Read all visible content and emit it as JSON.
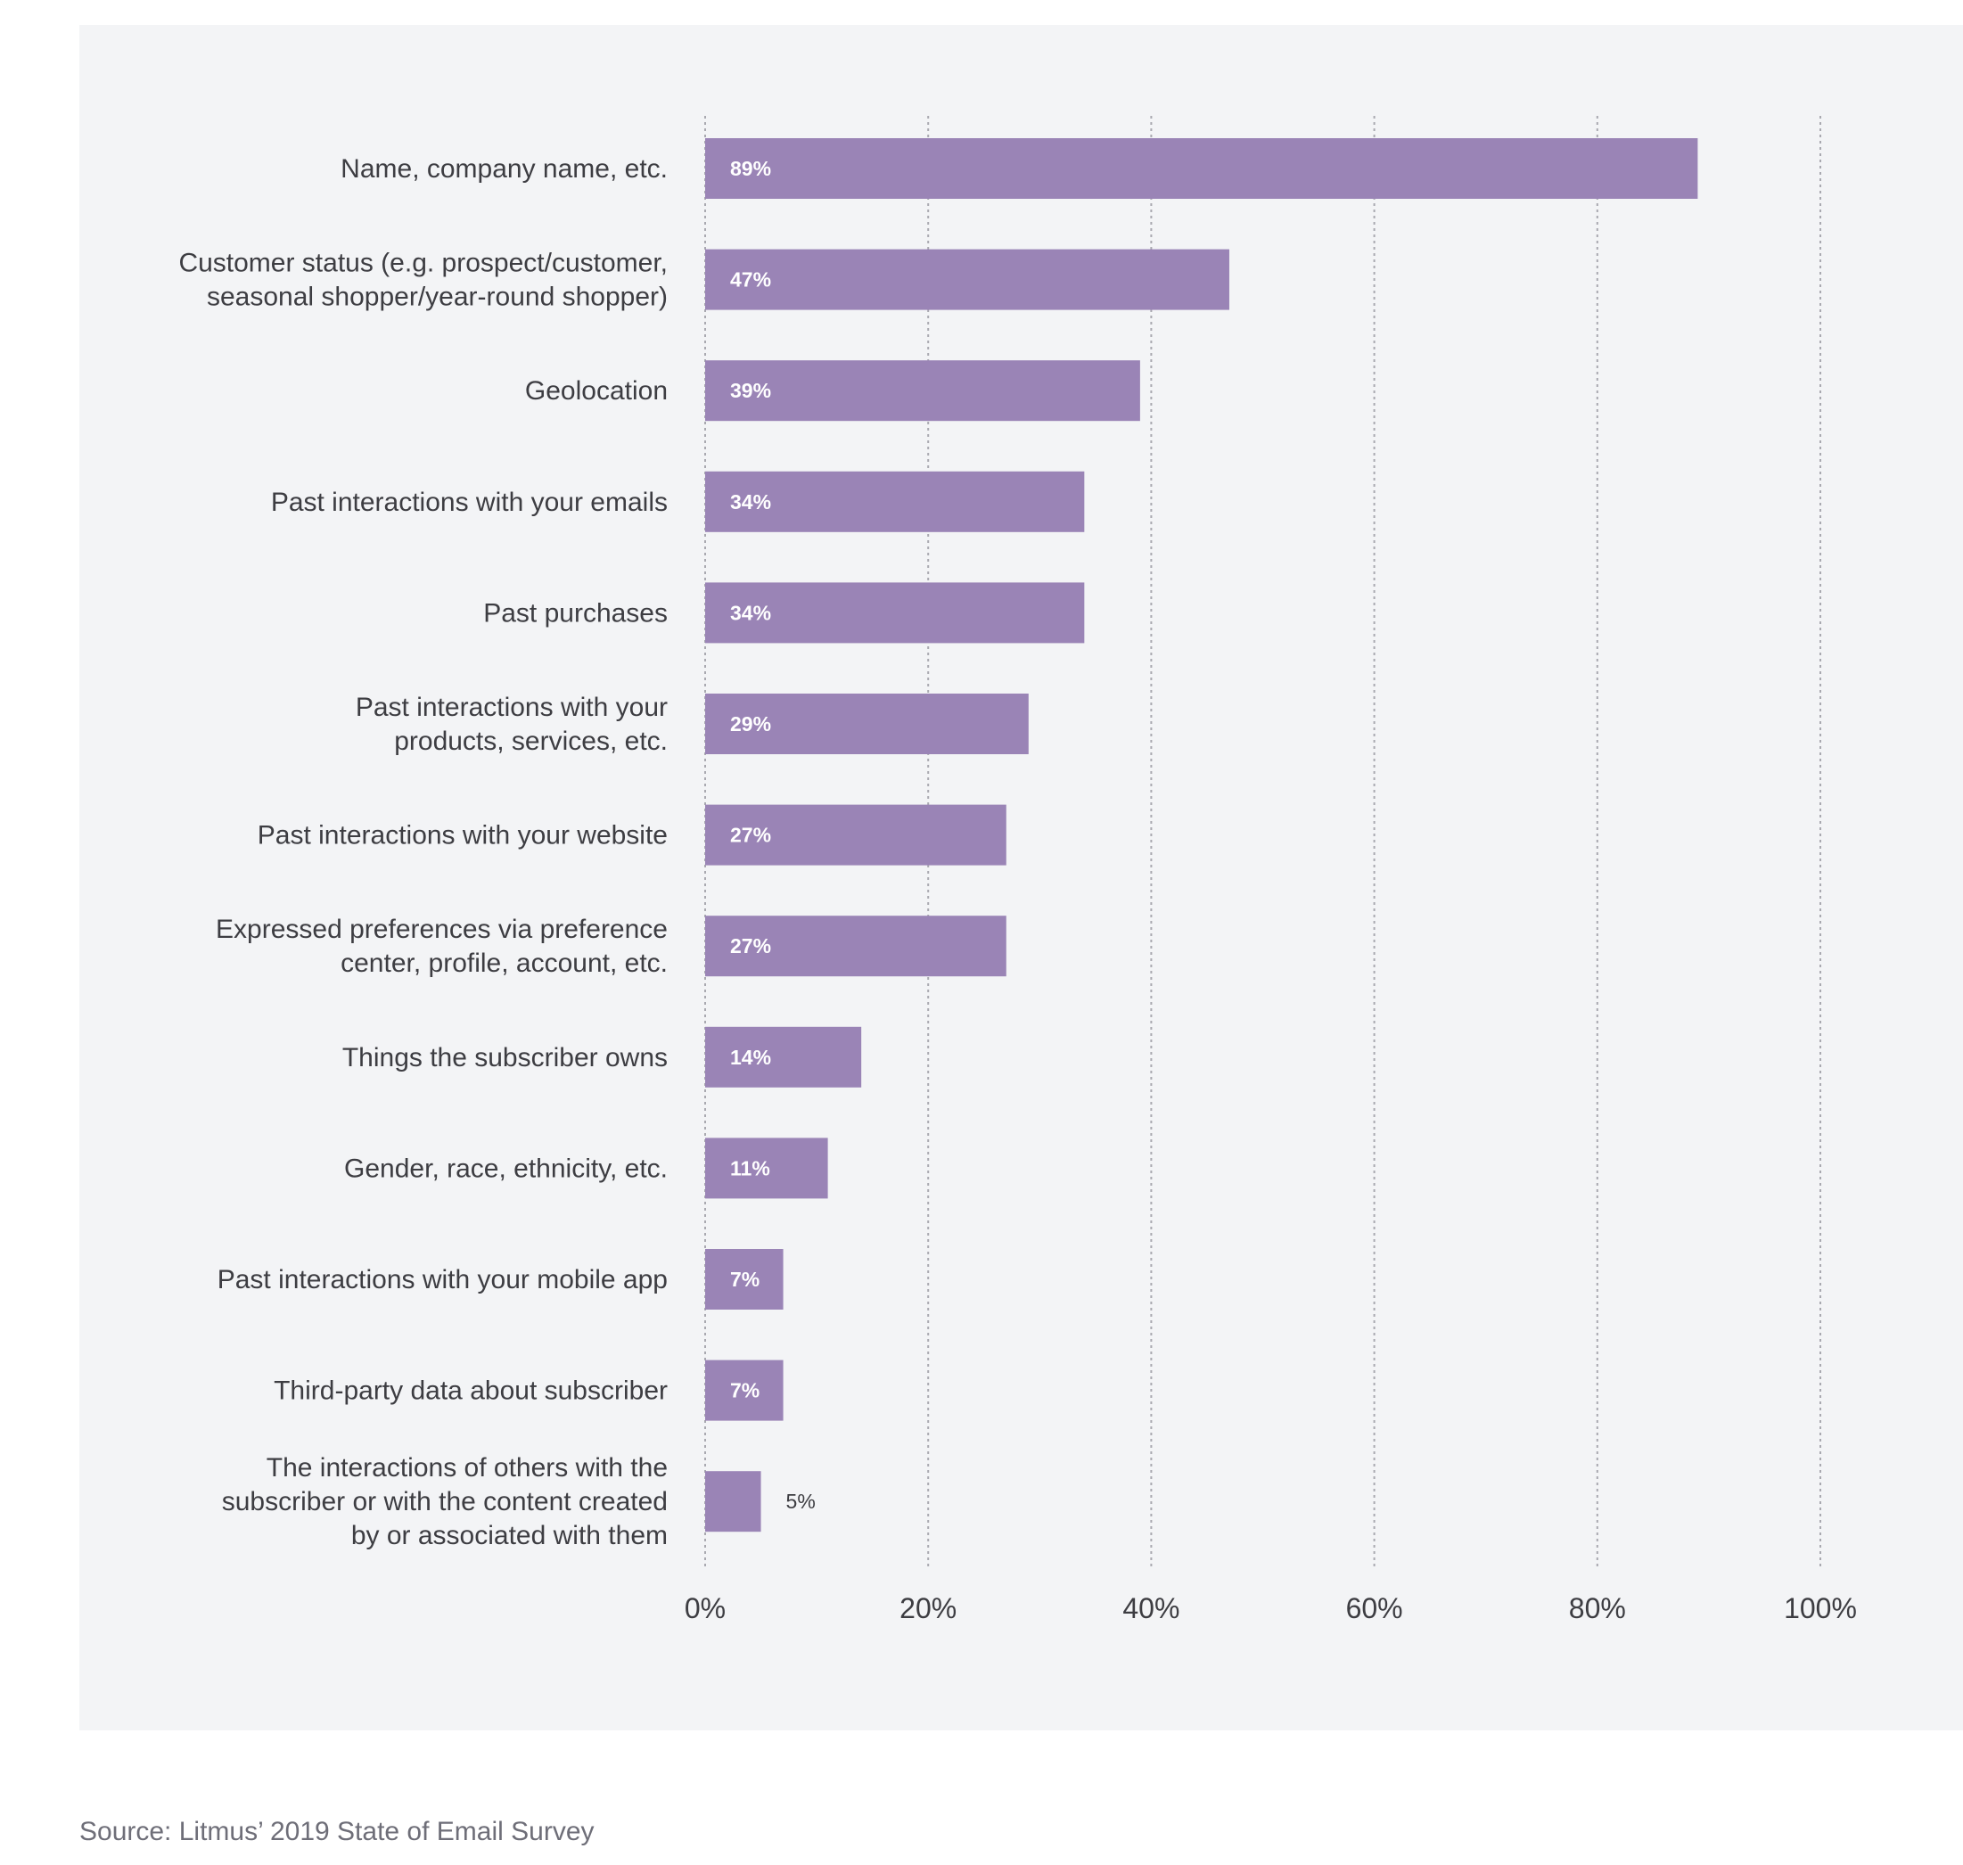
{
  "chart_data": {
    "type": "bar",
    "orientation": "horizontal",
    "categories": [
      [
        "Name, company name, etc."
      ],
      [
        "Customer status (e.g. prospect/customer,",
        "seasonal shopper/year-round shopper)"
      ],
      [
        "Geolocation"
      ],
      [
        "Past interactions with your emails"
      ],
      [
        "Past purchases"
      ],
      [
        "Past interactions with your",
        "products, services, etc."
      ],
      [
        "Past interactions with your website"
      ],
      [
        "Expressed preferences via preference",
        "center, profile, account, etc."
      ],
      [
        "Things the subscriber owns"
      ],
      [
        "Gender, race, ethnicity, etc."
      ],
      [
        "Past interactions with your mobile app"
      ],
      [
        "Third-party data about subscriber"
      ],
      [
        "The interactions of others with the",
        "subscriber or with the content created",
        "by or associated with them"
      ]
    ],
    "values": [
      89,
      47,
      39,
      34,
      34,
      29,
      27,
      27,
      14,
      11,
      7,
      7,
      5
    ],
    "value_labels": [
      "89%",
      "47%",
      "39%",
      "34%",
      "34%",
      "29%",
      "27%",
      "27%",
      "14%",
      "11%",
      "7%",
      "7%",
      "5%"
    ],
    "xlim": [
      0,
      100
    ],
    "xticks": [
      0,
      20,
      40,
      60,
      80,
      100
    ],
    "xtick_labels": [
      "0%",
      "20%",
      "40%",
      "60%",
      "80%",
      "100%"
    ],
    "grid": "vertical-dotted",
    "bar_color": "#9a84b6",
    "panel_color": "#f3f4f6"
  },
  "source": "Source: Litmus’ 2019 State of Email Survey"
}
